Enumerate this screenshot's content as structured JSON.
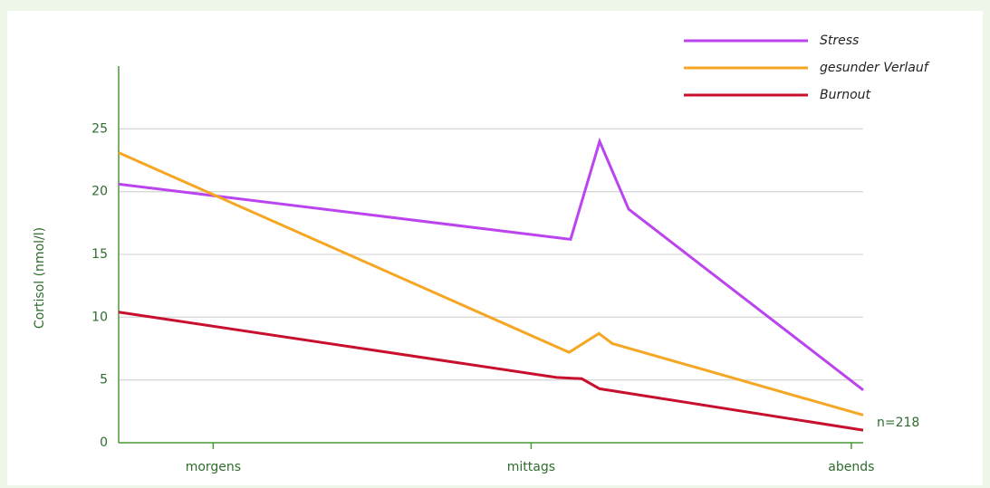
{
  "chart_data": {
    "type": "line",
    "y_label": "Cortisol (nmol/l)",
    "annotation": "n=218",
    "xlim": [
      0,
      100
    ],
    "xticks": [
      {
        "value": 12.7,
        "label": "morgens"
      },
      {
        "value": 55.4,
        "label": "mittags"
      },
      {
        "value": 98.4,
        "label": "abends"
      }
    ],
    "ylim": [
      0,
      30
    ],
    "yticks": [
      0,
      5,
      10,
      15,
      20,
      25
    ],
    "grid": true,
    "legend": "top-right",
    "series": [
      {
        "name": "Stress",
        "color": "#bb44ee",
        "x": [
          0,
          60.7,
          64.6,
          68.5,
          100
        ],
        "values": [
          20.6,
          16.2,
          24,
          18.6,
          4.2
        ]
      },
      {
        "name": "gesunder Verlauf",
        "color": "#f5a623",
        "x": [
          0,
          60.5,
          64.5,
          66.3,
          100
        ],
        "values": [
          23.1,
          7.2,
          8.7,
          7.9,
          2.2
        ]
      },
      {
        "name": "Burnout",
        "color": "#c8102e",
        "x": [
          0,
          58.8,
          62.2,
          64.6,
          100
        ],
        "values": [
          10.4,
          5.2,
          5.1,
          4.3,
          1.0
        ]
      }
    ]
  }
}
